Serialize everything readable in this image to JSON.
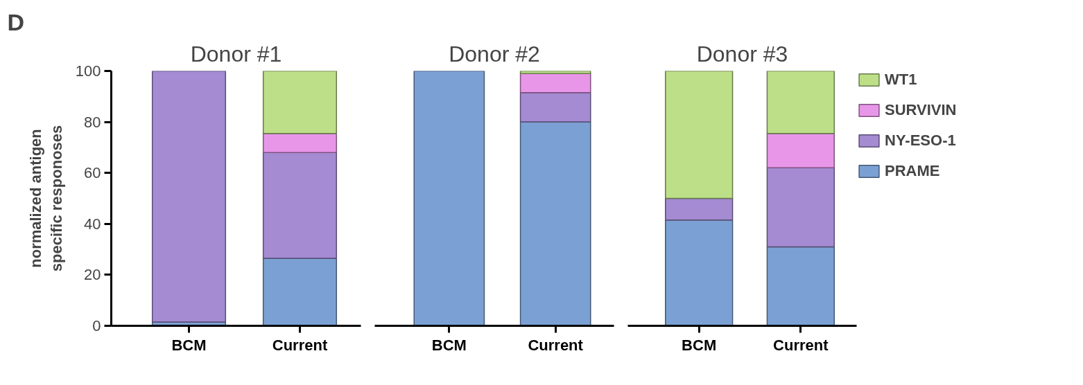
{
  "chart_data": [
    {
      "type": "bar",
      "stacked": true,
      "title": "Donor #1",
      "ylabel": "normalized antigen\nspecific responoses",
      "annotations": [
        "D"
      ],
      "categories": [
        "BCM",
        "Current"
      ],
      "ylim": [
        0,
        100
      ],
      "yticks": [
        0,
        20,
        40,
        60,
        80,
        100
      ],
      "grid": false,
      "series": [
        {
          "color": "#7ba1d4",
          "values": [
            1.5,
            26.5
          ]
        },
        {
          "color": "#a48bd2",
          "values": [
            98.5,
            41.5
          ]
        },
        {
          "color": "#e896e8",
          "values": [
            0,
            7.5
          ]
        },
        {
          "color": "#bddf88",
          "values": [
            0,
            24.5
          ]
        }
      ]
    },
    {
      "type": "bar",
      "stacked": true,
      "title": "Donor #2",
      "categories": [
        "BCM",
        "Current"
      ],
      "ylim": [
        0,
        100
      ],
      "yticks": [
        0,
        20,
        40,
        60,
        80,
        100
      ],
      "tick_labels": "x",
      "grid": false,
      "series": [
        {
          "color": "#7ba1d4",
          "values": [
            100,
            80
          ]
        },
        {
          "color": "#a48bd2",
          "values": [
            0,
            11.5
          ]
        },
        {
          "color": "#e896e8",
          "values": [
            0,
            7.5
          ]
        },
        {
          "color": "#bddf88",
          "values": [
            0,
            1
          ]
        }
      ]
    },
    {
      "type": "bar",
      "stacked": true,
      "title": "Donor #3",
      "categories": [
        "BCM",
        "Current"
      ],
      "ylim": [
        0,
        100
      ],
      "yticks": [
        0,
        20,
        40,
        60,
        80,
        100
      ],
      "tick_labels": "x",
      "grid": false,
      "legend": "right",
      "series": [
        {
          "name": "PRAME",
          "color": "#7ba1d4",
          "values": [
            41.5,
            31
          ]
        },
        {
          "name": "NY-ESO-1",
          "color": "#a48bd2",
          "values": [
            8.5,
            31
          ]
        },
        {
          "name": "SURVIVIN",
          "color": "#e896e8",
          "values": [
            0,
            13.5
          ]
        },
        {
          "name": "WT1",
          "color": "#bddf88",
          "values": [
            50,
            24.5
          ]
        }
      ]
    }
  ]
}
